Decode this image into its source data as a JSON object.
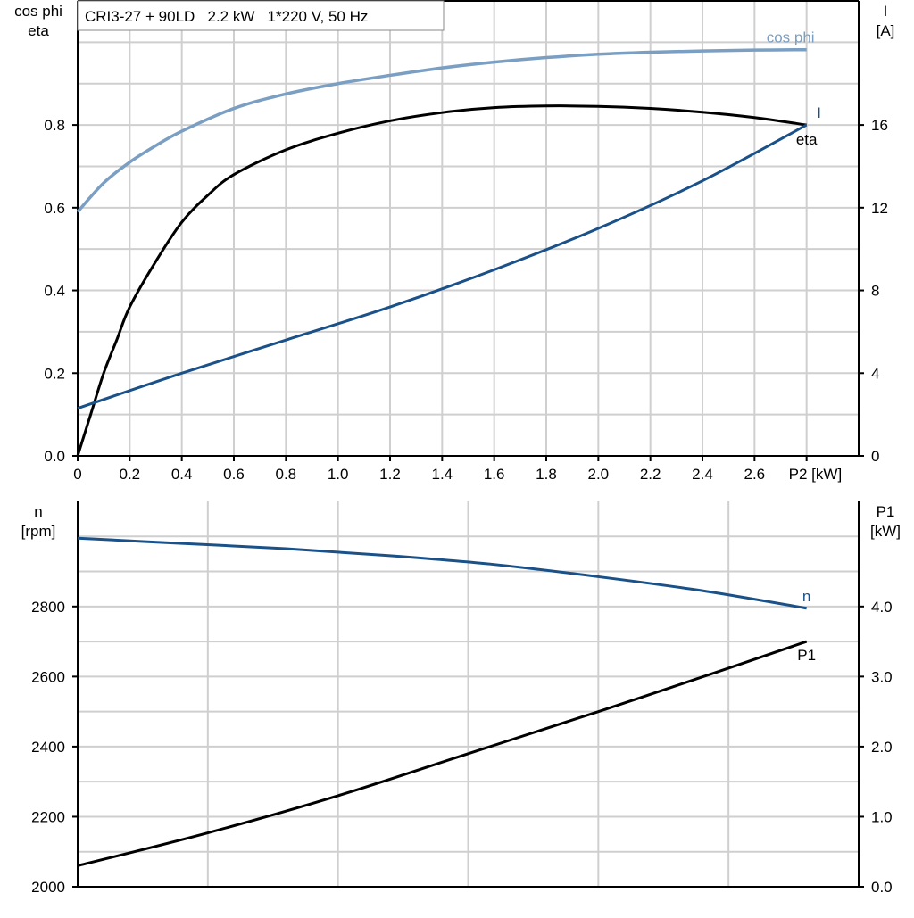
{
  "chart_data": [
    {
      "type": "line",
      "title": "CRI3-27 + 90LD   2.2 kW   1*220 V, 50 Hz",
      "xlabel": "P2 [kW]",
      "ylabel_left": [
        "cos phi",
        "eta"
      ],
      "ylabel_right": [
        "I",
        "[A]"
      ],
      "xlim": [
        0,
        3.0
      ],
      "ylim_left": [
        0,
        1.1
      ],
      "ylim_right": [
        0,
        22
      ],
      "grid": true,
      "x_ticks": [
        "0",
        "0.2",
        "0.4",
        "0.6",
        "0.8",
        "1.0",
        "1.2",
        "1.4",
        "1.6",
        "1.8",
        "2.0",
        "2.2",
        "2.4",
        "2.6",
        "P2 [kW]"
      ],
      "y_ticks_left": [
        "0.0",
        "0.2",
        "0.4",
        "0.6",
        "0.8"
      ],
      "y_ticks_right": [
        "0",
        "4",
        "8",
        "12",
        "16"
      ],
      "series": [
        {
          "name": "cos phi",
          "axis": "left",
          "color": "#7a9fc2",
          "x": [
            0,
            0.1,
            0.2,
            0.3,
            0.4,
            0.6,
            0.8,
            1.0,
            1.2,
            1.4,
            1.6,
            1.8,
            2.0,
            2.2,
            2.4,
            2.6,
            2.8
          ],
          "y": [
            0.59,
            0.66,
            0.71,
            0.75,
            0.785,
            0.84,
            0.875,
            0.9,
            0.92,
            0.938,
            0.952,
            0.963,
            0.971,
            0.976,
            0.979,
            0.981,
            0.982
          ]
        },
        {
          "name": "eta",
          "axis": "left",
          "color": "#000000",
          "x": [
            0,
            0.05,
            0.1,
            0.15,
            0.2,
            0.3,
            0.4,
            0.5,
            0.6,
            0.8,
            1.0,
            1.2,
            1.4,
            1.6,
            1.8,
            2.0,
            2.2,
            2.4,
            2.6,
            2.8
          ],
          "y": [
            0,
            0.1,
            0.2,
            0.28,
            0.36,
            0.47,
            0.565,
            0.63,
            0.68,
            0.74,
            0.78,
            0.81,
            0.83,
            0.842,
            0.846,
            0.845,
            0.84,
            0.831,
            0.818,
            0.8
          ]
        },
        {
          "name": "I",
          "axis": "right",
          "color": "#1b5189",
          "x": [
            0,
            0.4,
            0.8,
            1.2,
            1.6,
            2.0,
            2.4,
            2.8
          ],
          "y": [
            2.3,
            4.0,
            5.6,
            7.2,
            9.0,
            11.0,
            13.3,
            16.0
          ]
        }
      ]
    },
    {
      "type": "line",
      "xlim": [
        0,
        3.0
      ],
      "ylabel_left": [
        "n",
        "[rpm]"
      ],
      "ylabel_right": [
        "P1",
        "[kW]"
      ],
      "ylim_left": [
        2000,
        3100
      ],
      "ylim_right": [
        0,
        5.5
      ],
      "grid": true,
      "y_ticks_left": [
        "2000",
        "2200",
        "2400",
        "2600",
        "2800"
      ],
      "y_ticks_right": [
        "0.0",
        "1.0",
        "2.0",
        "3.0",
        "4.0"
      ],
      "series": [
        {
          "name": "n",
          "axis": "left",
          "color": "#1b5189",
          "x": [
            0,
            0.4,
            0.8,
            1.2,
            1.6,
            2.0,
            2.4,
            2.8
          ],
          "y": [
            2995,
            2980,
            2965,
            2945,
            2920,
            2885,
            2845,
            2795
          ]
        },
        {
          "name": "P1",
          "axis": "right",
          "color": "#000000",
          "x": [
            0,
            0.5,
            1.0,
            1.5,
            2.0,
            2.5,
            2.8
          ],
          "y": [
            0.3,
            0.77,
            1.3,
            1.9,
            2.5,
            3.12,
            3.5
          ]
        }
      ]
    }
  ]
}
